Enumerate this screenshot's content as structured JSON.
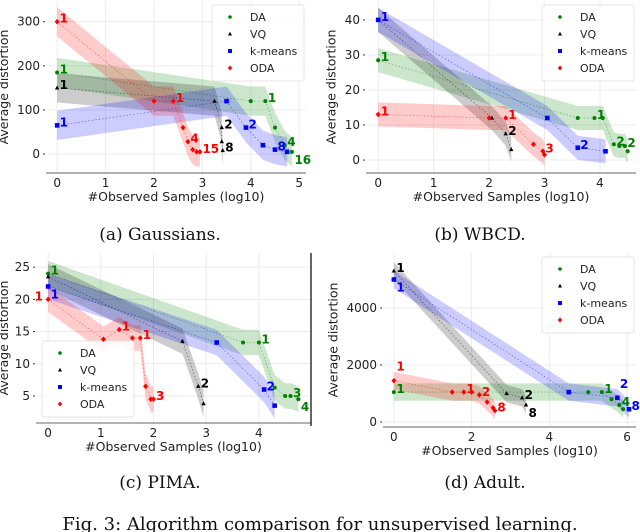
{
  "figure_caption": "Fig. 3: Algorithm comparison for unsupervised learning.",
  "colors": {
    "DA": "#008000",
    "VQ": "#000000",
    "k-means": "#0000ff",
    "ODA": "#ff0000"
  },
  "chart_data": [
    {
      "type": "line",
      "caption": "(a) Gaussians.",
      "xlabel": "#Observed Samples (log10)",
      "ylabel": "Average distortion",
      "xlim": [
        -0.23,
        5.14
      ],
      "ylim": [
        -43,
        347
      ],
      "xticks": [
        0,
        1,
        2,
        3,
        4,
        5
      ],
      "yticks": [
        0,
        100,
        200,
        300
      ],
      "grid": true,
      "legend": "top-right",
      "shaded_bands": true,
      "series": [
        {
          "name": "DA",
          "marker": "circle",
          "points": [
            [
              0,
              185,
              "1"
            ],
            [
              4.0,
              120,
              ""
            ],
            [
              4.3,
              120,
              "1"
            ],
            [
              4.5,
              60,
              ""
            ],
            [
              4.7,
              20,
              "4"
            ],
            [
              4.85,
              5,
              "16"
            ]
          ]
        },
        {
          "name": "VQ",
          "marker": "triangle",
          "points": [
            [
              0,
              150,
              "1"
            ],
            [
              3.25,
              120,
              ""
            ],
            [
              3.4,
              60,
              "2"
            ],
            [
              3.4,
              28,
              ""
            ],
            [
              3.42,
              8,
              "8"
            ]
          ]
        },
        {
          "name": "k-means",
          "marker": "square",
          "points": [
            [
              0,
              65,
              "1"
            ],
            [
              3.5,
              120,
              ""
            ],
            [
              3.9,
              60,
              "2"
            ],
            [
              4.25,
              20,
              ""
            ],
            [
              4.5,
              10,
              "8"
            ],
            [
              4.75,
              5,
              ""
            ]
          ]
        },
        {
          "name": "ODA",
          "marker": "diamond",
          "points": [
            [
              0,
              300,
              "1"
            ],
            [
              2.0,
              120,
              ""
            ],
            [
              2.4,
              120,
              "1"
            ],
            [
              2.6,
              60,
              ""
            ],
            [
              2.7,
              28,
              "4"
            ],
            [
              2.8,
              10,
              ""
            ],
            [
              2.88,
              5,
              ""
            ],
            [
              2.95,
              5,
              "15"
            ]
          ]
        }
      ]
    },
    {
      "type": "line",
      "caption": "(b) WBCD.",
      "xlabel": "#Observed Samples (log10)",
      "ylabel": "Average distortion",
      "xlim": [
        -0.22,
        4.65
      ],
      "ylim": [
        -3.7,
        45.4
      ],
      "xticks": [
        0,
        1,
        2,
        3,
        4
      ],
      "yticks": [
        0,
        10,
        20,
        30,
        40
      ],
      "grid": true,
      "legend": "top-right",
      "shaded_bands": true,
      "series": [
        {
          "name": "DA",
          "marker": "circle",
          "points": [
            [
              0,
              28.5,
              "1"
            ],
            [
              3.6,
              12,
              ""
            ],
            [
              3.9,
              12,
              "1"
            ],
            [
              4.05,
              12,
              ""
            ],
            [
              4.25,
              4.5,
              "2"
            ],
            [
              4.35,
              4,
              ""
            ],
            [
              4.45,
              4,
              "2"
            ],
            [
              4.5,
              2.5,
              ""
            ]
          ]
        },
        {
          "name": "VQ",
          "marker": "triangle",
          "points": [
            [
              0,
              40,
              ""
            ],
            [
              2.05,
              12,
              ""
            ],
            [
              2.3,
              7.5,
              "2"
            ],
            [
              2.4,
              3,
              ""
            ]
          ]
        },
        {
          "name": "k-means",
          "marker": "square",
          "points": [
            [
              0,
              40,
              "1"
            ],
            [
              3.05,
              12,
              ""
            ],
            [
              3.6,
              3.5,
              "2"
            ],
            [
              4.1,
              2.5,
              ""
            ]
          ]
        },
        {
          "name": "ODA",
          "marker": "diamond",
          "points": [
            [
              0,
              13,
              "1"
            ],
            [
              2.0,
              12,
              ""
            ],
            [
              2.3,
              12,
              "1"
            ],
            [
              2.8,
              4.5,
              ""
            ],
            [
              2.97,
              2.5,
              "3"
            ],
            [
              3.0,
              1.5,
              ""
            ]
          ]
        }
      ]
    },
    {
      "type": "line",
      "caption": "(c) PIMA.",
      "xlabel": "#Observed Samples (log10)",
      "ylabel": "Average distortion",
      "xlim": [
        -0.23,
        4.99
      ],
      "ylim": [
        0.8,
        27.2
      ],
      "xticks": [
        0,
        1,
        2,
        3,
        4
      ],
      "yticks": [
        5,
        10,
        15,
        20,
        25
      ],
      "grid": true,
      "legend": "lower-left",
      "shaded_bands": true,
      "series": [
        {
          "name": "DA",
          "marker": "circle",
          "points": [
            [
              0,
              24,
              "1"
            ],
            [
              3.7,
              13.3,
              ""
            ],
            [
              4.0,
              13.3,
              "1"
            ],
            [
              4.3,
              6.3,
              ""
            ],
            [
              4.5,
              5,
              ""
            ],
            [
              4.6,
              5,
              "3"
            ],
            [
              4.75,
              4.5,
              "4"
            ]
          ]
        },
        {
          "name": "VQ",
          "marker": "triangle",
          "points": [
            [
              0,
              23.5,
              ""
            ],
            [
              2.55,
              13.5,
              ""
            ],
            [
              2.85,
              6.5,
              "2"
            ],
            [
              2.95,
              3.8,
              ""
            ]
          ]
        },
        {
          "name": "k-means",
          "marker": "square",
          "points": [
            [
              0,
              22,
              "1"
            ],
            [
              3.2,
              13.3,
              ""
            ],
            [
              4.1,
              6,
              "2"
            ],
            [
              4.3,
              3.5,
              ""
            ]
          ]
        },
        {
          "name": "ODA",
          "marker": "diamond",
          "points": [
            [
              0,
              20,
              "1"
            ],
            [
              1.05,
              13.8,
              ""
            ],
            [
              1.35,
              15.3,
              "1"
            ],
            [
              1.6,
              14,
              ""
            ],
            [
              1.75,
              14,
              "1"
            ],
            [
              1.85,
              6.5,
              ""
            ],
            [
              1.95,
              4.5,
              ""
            ],
            [
              2.0,
              4.5,
              "3"
            ]
          ]
        }
      ]
    },
    {
      "type": "line",
      "caption": "(d) Adult.",
      "xlabel": "#Observed Samples (log10)",
      "ylabel": "Average distortion",
      "xlim": [
        -0.28,
        6.23
      ],
      "ylim": [
        -175,
        5930
      ],
      "xticks": [
        0,
        2,
        4,
        6
      ],
      "yticks": [
        0,
        2000,
        4000
      ],
      "grid": true,
      "legend": "top-right",
      "shaded_bands": true,
      "series": [
        {
          "name": "DA",
          "marker": "circle",
          "points": [
            [
              0,
              1050,
              "1"
            ],
            [
              5.0,
              1050,
              ""
            ],
            [
              5.35,
              1050,
              "1"
            ],
            [
              5.6,
              800,
              ""
            ],
            [
              5.8,
              600,
              "4"
            ],
            [
              5.9,
              450,
              ""
            ]
          ]
        },
        {
          "name": "VQ",
          "marker": "triangle",
          "points": [
            [
              0,
              5300,
              "1"
            ],
            [
              2.9,
              1000,
              ""
            ],
            [
              3.3,
              850,
              "2"
            ],
            [
              3.4,
              600,
              "8"
            ]
          ]
        },
        {
          "name": "k-means",
          "marker": "square",
          "points": [
            [
              0,
              5000,
              "1"
            ],
            [
              4.5,
              1050,
              ""
            ],
            [
              5.75,
              850,
              "2"
            ],
            [
              6.05,
              450,
              "8"
            ]
          ]
        },
        {
          "name": "ODA",
          "marker": "diamond",
          "points": [
            [
              0,
              1450,
              "1"
            ],
            [
              1.5,
              1050,
              ""
            ],
            [
              1.8,
              1050,
              "1"
            ],
            [
              2.0,
              1050,
              ""
            ],
            [
              2.2,
              950,
              "2"
            ],
            [
              2.4,
              700,
              ""
            ],
            [
              2.55,
              500,
              ""
            ],
            [
              2.6,
              400,
              "8"
            ]
          ]
        }
      ]
    }
  ]
}
